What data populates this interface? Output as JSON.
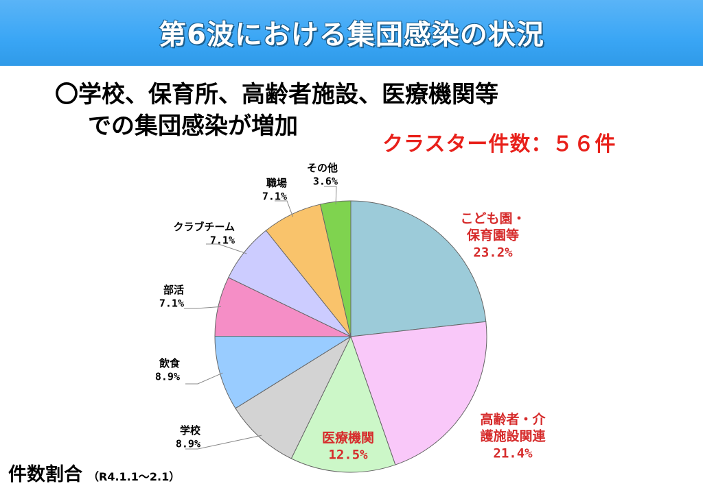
{
  "banner": {
    "title": "第6波における集団感染の状況"
  },
  "headline": {
    "line1": "〇学校、保育所、高齢者施設、医療機関等",
    "line2": "での集団感染が増加"
  },
  "cluster_count": "クラスター件数：５６件",
  "footer": {
    "title": "件数割合",
    "period": "（R4.1.1～2.1）"
  },
  "chart_data": {
    "type": "pie",
    "title": "",
    "slices": [
      {
        "lines": [
          "こども園・",
          "保育園等"
        ],
        "pct_label": "23.2%",
        "value": 23.2,
        "color": "#9ccbd9",
        "label_color": "#d62c2c",
        "big": true
      },
      {
        "lines": [
          "高齢者・介",
          "護施設関連"
        ],
        "pct_label": "21.4%",
        "value": 21.4,
        "color": "#f9c8f9",
        "label_color": "#d62c2c",
        "big": true
      },
      {
        "lines": [
          "医療機関"
        ],
        "pct_label": "12.5%",
        "value": 12.5,
        "color": "#ccf7c8",
        "label_color": "#d62c2c",
        "big": true
      },
      {
        "lines": [
          "学校"
        ],
        "pct_label": "8.9%",
        "value": 8.9,
        "color": "#d3d3d3",
        "label_color": "#000000",
        "big": false
      },
      {
        "lines": [
          "飲食"
        ],
        "pct_label": "8.9%",
        "value": 8.9,
        "color": "#99ccff",
        "label_color": "#000000",
        "big": false
      },
      {
        "lines": [
          "部活"
        ],
        "pct_label": "7.1%",
        "value": 7.1,
        "color": "#f58ec6",
        "label_color": "#000000",
        "big": false
      },
      {
        "lines": [
          "クラブチーム"
        ],
        "pct_label": "7.1%",
        "value": 7.1,
        "color": "#ccccff",
        "label_color": "#000000",
        "big": false
      },
      {
        "lines": [
          "職場"
        ],
        "pct_label": "7.1%",
        "value": 7.1,
        "color": "#f9c36b",
        "label_color": "#000000",
        "big": false
      },
      {
        "lines": [
          "その他"
        ],
        "pct_label": "3.6%",
        "value": 3.6,
        "color": "#7fd34f",
        "label_color": "#000000",
        "big": false
      }
    ]
  }
}
